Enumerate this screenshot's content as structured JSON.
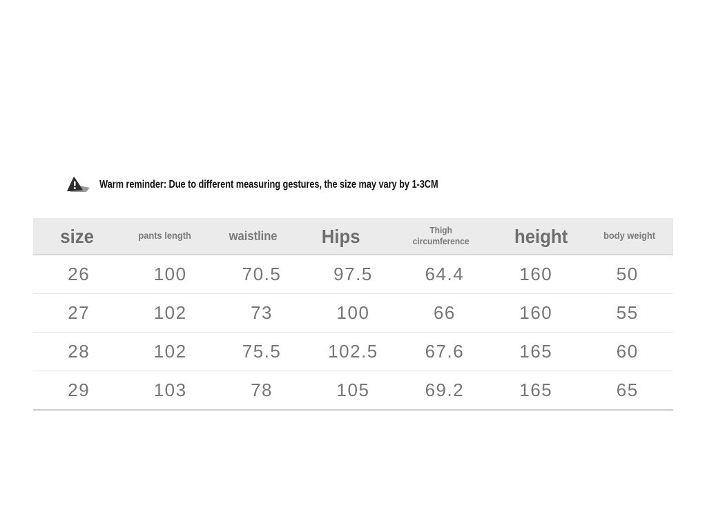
{
  "reminder": {
    "icon": "warning-triangle-icon",
    "text": "Warm reminder: Due to different measuring gestures, the size may vary by 1-3CM"
  },
  "table": {
    "columns": [
      {
        "key": "size",
        "label": "size",
        "style": "xl"
      },
      {
        "key": "pants-length",
        "label": "pants length",
        "style": "sm"
      },
      {
        "key": "waistline",
        "label": "waistline",
        "style": "md"
      },
      {
        "key": "hips",
        "label": "Hips",
        "style": "xl"
      },
      {
        "key": "thigh-circumference",
        "label": "Thigh circumference",
        "style": "xs"
      },
      {
        "key": "height",
        "label": "height",
        "style": "xl"
      },
      {
        "key": "body-weight",
        "label": "body weight",
        "style": "sm"
      }
    ],
    "rows": [
      [
        "26",
        "100",
        "70.5",
        "97.5",
        "64.4",
        "160",
        "50"
      ],
      [
        "27",
        "102",
        "73",
        "100",
        "66",
        "160",
        "55"
      ],
      [
        "28",
        "102",
        "75.5",
        "102.5",
        "67.6",
        "165",
        "60"
      ],
      [
        "29",
        "103",
        "78",
        "105",
        "69.2",
        "165",
        "65"
      ]
    ]
  },
  "colors": {
    "page_bg": "#ffffff",
    "header_bg": "#ebebeb",
    "header_text": "#7a7a7a",
    "header_border": "#d9d9d9",
    "cell_text": "#767676",
    "row_border": "#e9e9e9",
    "table_bottom_border": "#cccccc",
    "reminder_color": "#141414",
    "icon_dark": "#2e2e2e",
    "icon_shadow": "#9a9a9a"
  }
}
